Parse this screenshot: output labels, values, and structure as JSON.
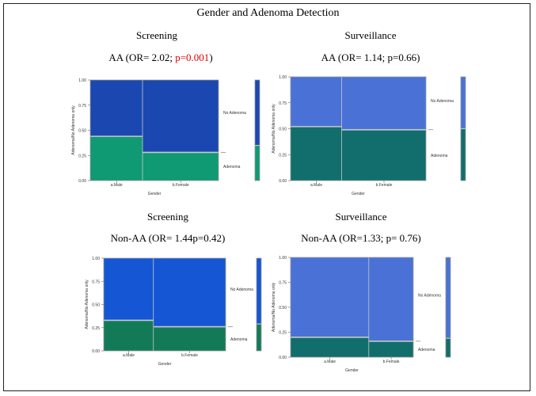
{
  "title": "Gender and Adenoma Detection",
  "colors": {
    "screening_aa_no": "#1b48b0",
    "screening_aa_yes": "#0f9a73",
    "surv_aa_no": "#4a72d6",
    "surv_aa_yes": "#116e6c",
    "screening_nonaa_no": "#1556d4",
    "screening_nonaa_yes": "#137a58",
    "surv_nonaa_no": "#4a72d6",
    "surv_nonaa_yes": "#116e6c",
    "divider": "#c8c8c8",
    "pvalue_highlight": "#e00000"
  },
  "chart_data": [
    {
      "type": "mosaic",
      "title": "Screening",
      "subtitle": "AA (OR= 2.02; ",
      "subtitle_p": "p=0.001",
      "subtitle_end": ")",
      "xlabel": "Gender",
      "ylabel": "Adenoma/No Adenoma only",
      "ylim": [
        0,
        1
      ],
      "yticks": [
        "0.00",
        "0.25",
        "0.50",
        "0.75",
        "1.00"
      ],
      "categories": [
        "a.Male",
        "b.Female"
      ],
      "category_widths": [
        0.41,
        0.59
      ],
      "series": [
        {
          "name": "Adenoma",
          "values": [
            0.44,
            0.28
          ]
        },
        {
          "name": "No Adenoma",
          "values": [
            0.56,
            0.72
          ]
        }
      ],
      "overall_adenoma": 0.35
    },
    {
      "type": "mosaic",
      "title": "Surveillance",
      "subtitle": "AA (OR= 1.14; p=0.66)",
      "subtitle_p": "",
      "subtitle_end": "",
      "xlabel": "Gender",
      "ylabel": "Adenoma/No Adenoma only",
      "ylim": [
        0,
        1
      ],
      "yticks": [
        "0.00",
        "0.25",
        "0.50",
        "0.75",
        "1.00"
      ],
      "categories": [
        "a.Male",
        "b.Female"
      ],
      "category_widths": [
        0.38,
        0.62
      ],
      "series": [
        {
          "name": "Adenoma",
          "values": [
            0.52,
            0.49
          ]
        },
        {
          "name": "No Adenoma",
          "values": [
            0.48,
            0.51
          ]
        }
      ],
      "overall_adenoma": 0.5
    },
    {
      "type": "mosaic",
      "title": "Screening",
      "subtitle": "Non-AA  (OR= 1.44p=0.42)",
      "subtitle_p": "",
      "subtitle_end": "",
      "xlabel": "Gender",
      "ylabel": "Adenoma/No Adenoma only",
      "ylim": [
        0,
        1
      ],
      "yticks": [
        "0.00",
        "0.25",
        "0.50",
        "0.75",
        "1.00"
      ],
      "categories": [
        "a.Male",
        "b.Female"
      ],
      "category_widths": [
        0.41,
        0.59
      ],
      "series": [
        {
          "name": "Adenoma",
          "values": [
            0.33,
            0.26
          ]
        },
        {
          "name": "No Adenoma",
          "values": [
            0.67,
            0.74
          ]
        }
      ],
      "overall_adenoma": 0.29
    },
    {
      "type": "mosaic",
      "title": "Surveillance",
      "subtitle": "Non-AA (OR=1.33; p= 0.76)",
      "subtitle_p": "",
      "subtitle_end": "",
      "xlabel": "Gender",
      "ylabel": "Adenoma/No Adenoma only",
      "ylim": [
        0,
        1
      ],
      "yticks": [
        "0.00",
        "0.25",
        "0.50",
        "0.75",
        "1.00"
      ],
      "categories": [
        "a.Male",
        "b.Female"
      ],
      "category_widths": [
        0.64,
        0.36
      ],
      "series": [
        {
          "name": "Adenoma",
          "values": [
            0.2,
            0.16
          ]
        },
        {
          "name": "No Adenoma",
          "values": [
            0.8,
            0.84
          ]
        }
      ],
      "overall_adenoma": 0.19
    }
  ]
}
